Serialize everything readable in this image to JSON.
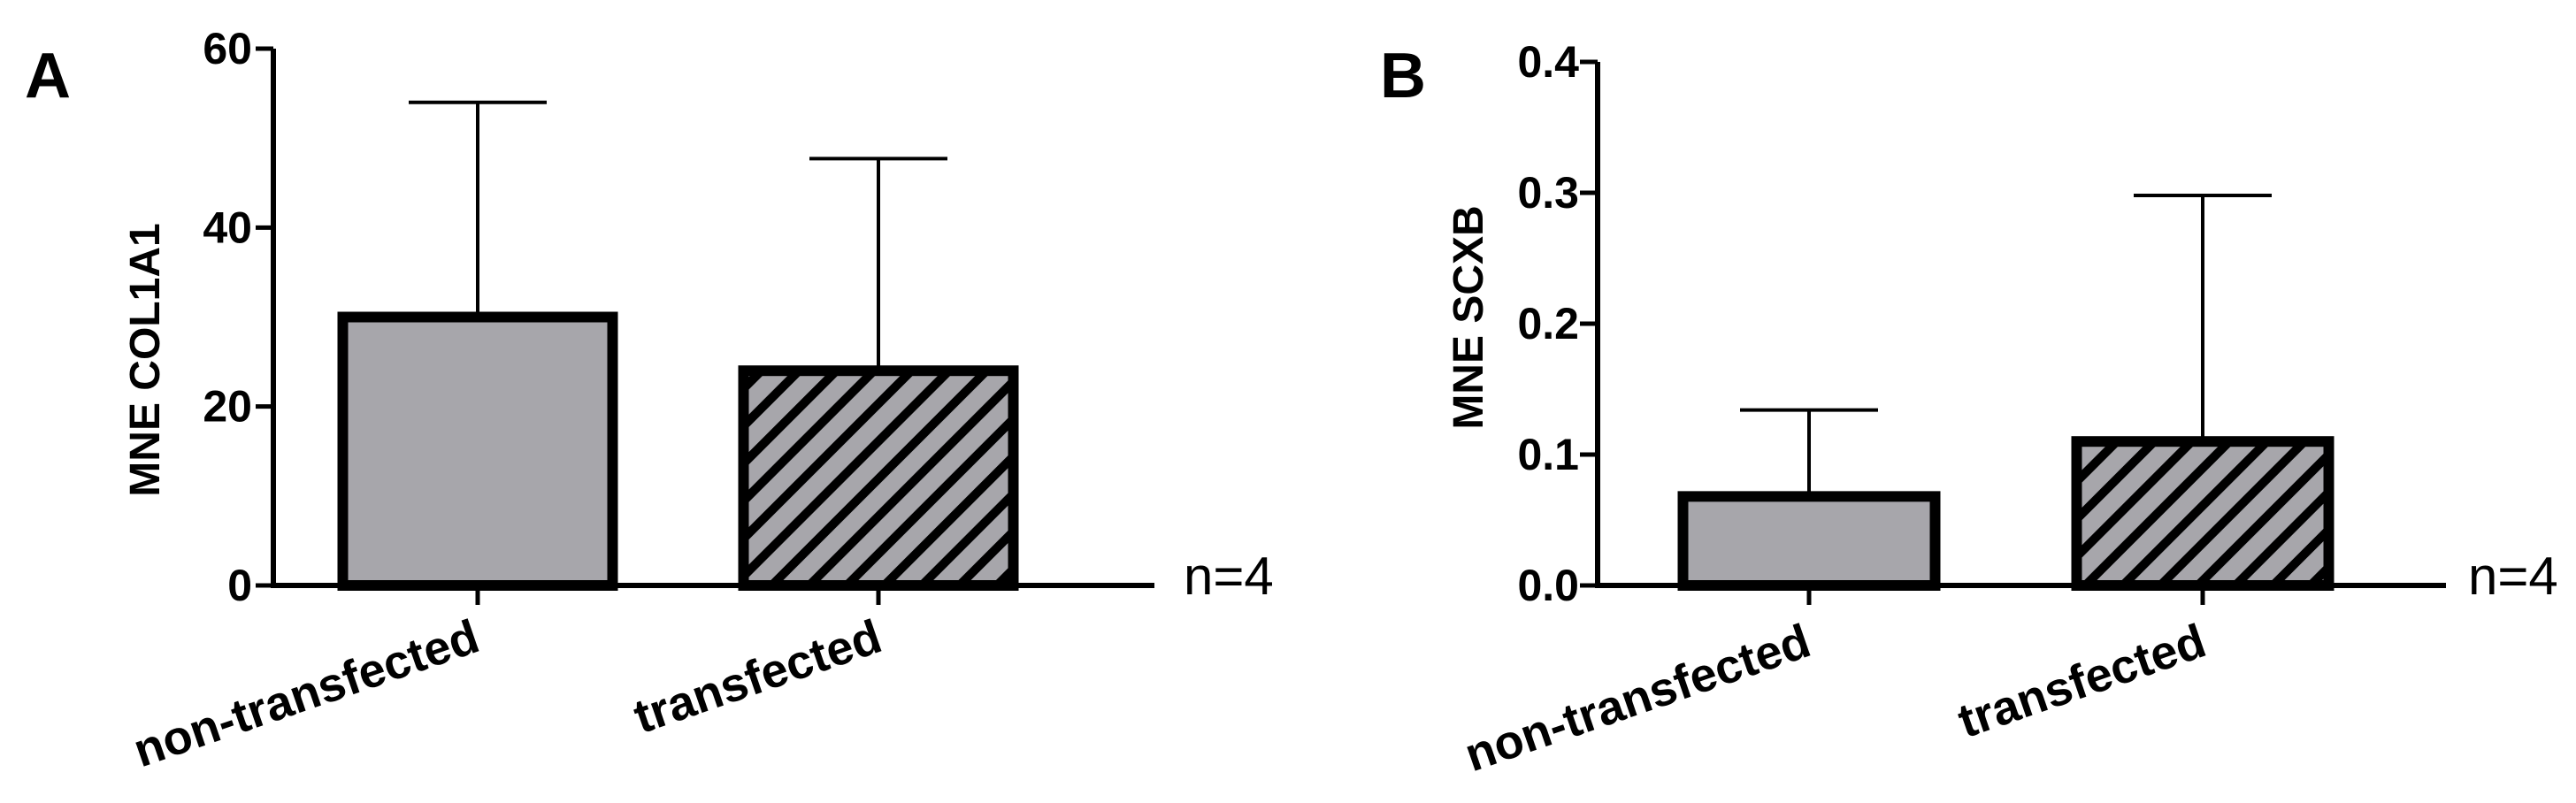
{
  "chart_data": [
    {
      "type": "bar",
      "panel": "A",
      "categories": [
        "non-transfected",
        "transfected"
      ],
      "values": [
        30,
        24
      ],
      "error_upper": [
        54,
        47.7
      ],
      "ylabel": "MNE COL1A1",
      "ylim": [
        0,
        60
      ],
      "yticks": [
        "0",
        "20",
        "40",
        "60"
      ],
      "annotation": "n=4",
      "fills": [
        "solid",
        "hatched"
      ],
      "grid": false
    },
    {
      "type": "bar",
      "panel": "B",
      "categories": [
        "non-transfected",
        "transfected"
      ],
      "values": [
        0.068,
        0.11
      ],
      "error_upper": [
        0.134,
        0.298
      ],
      "ylabel": "MNE SCXB",
      "ylim": [
        0,
        0.4
      ],
      "yticks": [
        "0.0",
        "0.1",
        "0.2",
        "0.3",
        "0.4"
      ],
      "annotation": "n=4",
      "fills": [
        "solid",
        "hatched"
      ],
      "grid": false
    }
  ],
  "colors": {
    "bar_fill": "#a7a6ab",
    "outline": "#000000",
    "background": "#ffffff"
  }
}
